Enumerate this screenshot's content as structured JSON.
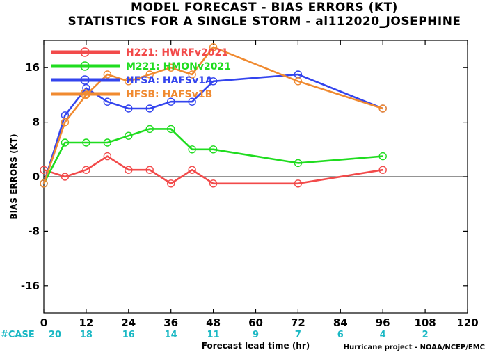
{
  "chart_data": {
    "type": "line",
    "title": "MODEL FORECAST - BIAS ERRORS (KT)",
    "subtitle": "STATISTICS FOR A SINGLE STORM - al112020_JOSEPHINE",
    "xlabel": "Forecast lead time (hr)",
    "ylabel": "BIAS ERRORS (KT)",
    "xlim": [
      0,
      120
    ],
    "ylim": [
      -20,
      20
    ],
    "x_ticks": [
      0,
      12,
      24,
      36,
      48,
      60,
      72,
      84,
      96,
      108,
      120
    ],
    "y_ticks": [
      -16,
      -8,
      0,
      8,
      16
    ],
    "zero_line": true,
    "legend_position": "top-left",
    "case_label": "#CASE",
    "cases": [
      {
        "x": 0,
        "count": "20"
      },
      {
        "x": 12,
        "count": "18"
      },
      {
        "x": 24,
        "count": "16"
      },
      {
        "x": 36,
        "count": "14"
      },
      {
        "x": 48,
        "count": "11"
      },
      {
        "x": 60,
        "count": "9"
      },
      {
        "x": 72,
        "count": "7"
      },
      {
        "x": 84,
        "count": "6"
      },
      {
        "x": 96,
        "count": "4"
      },
      {
        "x": 108,
        "count": "2"
      }
    ],
    "credit": "Hurricane project - NOAA/NCEP/EMC",
    "series": [
      {
        "name": "H221: HWRFv2021",
        "color": "#f24a4a",
        "points": [
          [
            0,
            1
          ],
          [
            6,
            0
          ],
          [
            12,
            1
          ],
          [
            18,
            3
          ],
          [
            24,
            1
          ],
          [
            30,
            1
          ],
          [
            36,
            -1
          ],
          [
            42,
            1
          ],
          [
            48,
            -1
          ],
          [
            72,
            -1
          ],
          [
            96,
            1
          ]
        ]
      },
      {
        "name": "M221: HMONv2021",
        "color": "#1fdc1f",
        "points": [
          [
            0,
            -1
          ],
          [
            6,
            5
          ],
          [
            12,
            5
          ],
          [
            18,
            5
          ],
          [
            24,
            6
          ],
          [
            30,
            7
          ],
          [
            36,
            7
          ],
          [
            42,
            4
          ],
          [
            48,
            4
          ],
          [
            72,
            2
          ],
          [
            96,
            3
          ]
        ]
      },
      {
        "name": "HFSA: HAFSv1A",
        "color": "#3344ee",
        "points": [
          [
            0,
            -1
          ],
          [
            6,
            9
          ],
          [
            12,
            13
          ],
          [
            18,
            11
          ],
          [
            24,
            10
          ],
          [
            30,
            10
          ],
          [
            36,
            11
          ],
          [
            42,
            11
          ],
          [
            48,
            14
          ],
          [
            72,
            15
          ],
          [
            96,
            10
          ]
        ]
      },
      {
        "name": "HFSB: HAFSv1B",
        "color": "#f08a30",
        "points": [
          [
            0,
            -1
          ],
          [
            6,
            8
          ],
          [
            12,
            12
          ],
          [
            18,
            15
          ],
          [
            24,
            14
          ],
          [
            30,
            15
          ],
          [
            36,
            16
          ],
          [
            42,
            15
          ],
          [
            48,
            19
          ],
          [
            72,
            14
          ],
          [
            96,
            10
          ]
        ]
      }
    ]
  }
}
